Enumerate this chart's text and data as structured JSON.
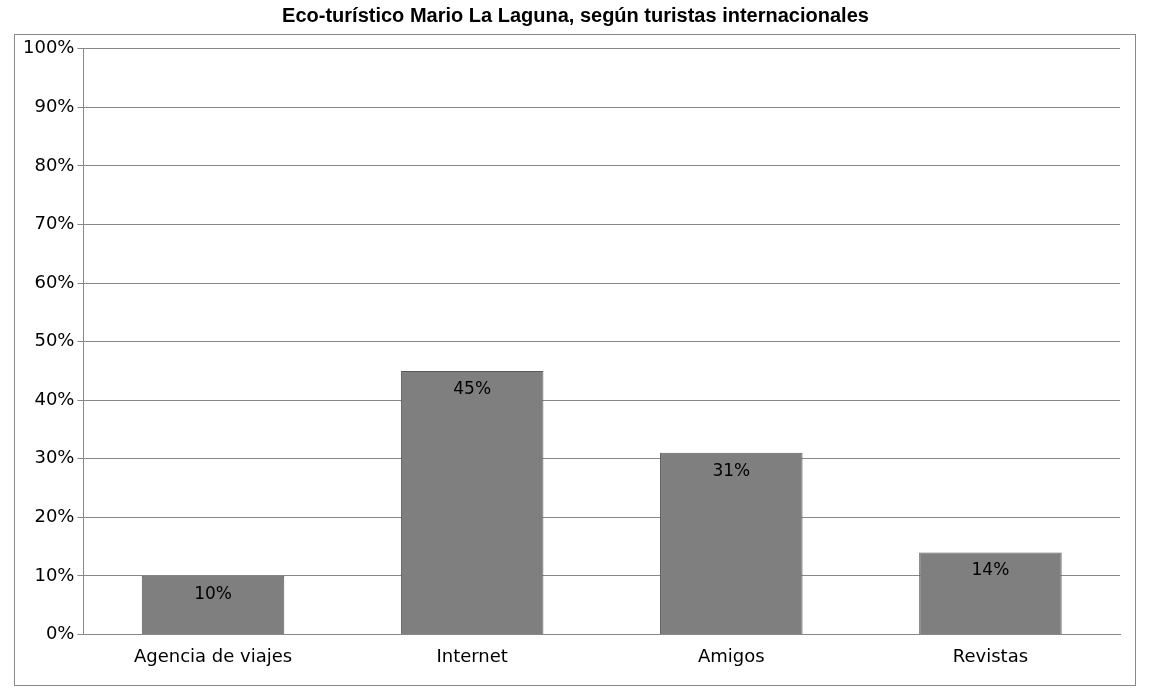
{
  "chart_data": {
    "type": "bar",
    "title": "Eco-turístico Mario La Laguna, según turistas internacionales",
    "categories": [
      "Agencia de viajes",
      "Internet",
      "Amigos",
      "Revistas"
    ],
    "values": [
      10,
      45,
      31,
      14
    ],
    "value_labels": [
      "10%",
      "45%",
      "31%",
      "14%"
    ],
    "color": "#7f7f7f",
    "ylim": [
      0,
      100
    ],
    "yticks": [
      {
        "value": 0,
        "label": "0%"
      },
      {
        "value": 10,
        "label": "10%"
      },
      {
        "value": 20,
        "label": "20%"
      },
      {
        "value": 30,
        "label": "30%"
      },
      {
        "value": 40,
        "label": "40%"
      },
      {
        "value": 50,
        "label": "50%"
      },
      {
        "value": 60,
        "label": "60%"
      },
      {
        "value": 70,
        "label": "70%"
      },
      {
        "value": 80,
        "label": "80%"
      },
      {
        "value": 90,
        "label": "90%"
      },
      {
        "value": 100,
        "label": "100%"
      }
    ],
    "grid": "y",
    "legend": false
  }
}
